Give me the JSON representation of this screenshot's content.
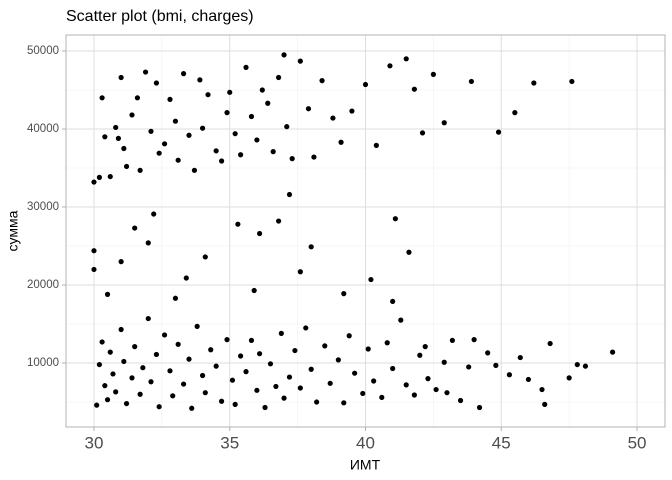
{
  "chart_data": {
    "type": "scatter",
    "title": "Scatter plot (bmi, charges)",
    "x_label": "ИМТ",
    "y_label": "сумма",
    "color": "#000000",
    "x": [
      30.0,
      30.2,
      30.3,
      30.4,
      30.6,
      30.8,
      30.9,
      31.0,
      31.1,
      31.2,
      31.4,
      31.6,
      31.7,
      31.9,
      32.1,
      32.3,
      32.4,
      32.6,
      32.8,
      33.0,
      33.1,
      33.3,
      33.5,
      33.7,
      33.9,
      34.0,
      34.2,
      34.5,
      34.7,
      34.9,
      35.0,
      35.2,
      35.4,
      35.6,
      35.8,
      36.0,
      36.2,
      36.4,
      36.6,
      36.8,
      37.0,
      37.1,
      37.3,
      37.6,
      37.9,
      38.1,
      38.4,
      38.8,
      39.1,
      39.5,
      40.0,
      40.4,
      40.9,
      41.5,
      41.8,
      42.1,
      42.5,
      42.9,
      43.9,
      44.9,
      45.5,
      46.2,
      47.6,
      30.0,
      30.0,
      30.5,
      31.0,
      31.5,
      32.0,
      32.2,
      33.0,
      33.4,
      34.1,
      35.3,
      35.9,
      36.1,
      36.8,
      37.2,
      37.6,
      38.0,
      39.2,
      40.2,
      41.1,
      41.6,
      41.0,
      30.1,
      30.2,
      30.3,
      30.4,
      30.5,
      30.6,
      30.7,
      30.8,
      31.0,
      31.1,
      31.2,
      31.4,
      31.5,
      31.7,
      31.8,
      32.0,
      32.1,
      32.3,
      32.4,
      32.6,
      32.8,
      32.9,
      33.1,
      33.3,
      33.5,
      33.6,
      33.8,
      34.0,
      34.1,
      34.3,
      34.5,
      34.7,
      34.9,
      35.1,
      35.2,
      35.4,
      35.6,
      35.8,
      36.0,
      36.1,
      36.3,
      36.5,
      36.7,
      36.9,
      37.0,
      37.2,
      37.4,
      37.6,
      37.8,
      38.0,
      38.2,
      38.5,
      38.7,
      39.0,
      39.2,
      39.4,
      39.6,
      39.9,
      40.1,
      40.3,
      40.6,
      40.8,
      41.0,
      41.3,
      41.5,
      41.8,
      42.0,
      42.3,
      42.6,
      42.9,
      43.2,
      43.5,
      43.8,
      44.2,
      44.5,
      44.8,
      45.3,
      45.7,
      46.0,
      46.6,
      46.8,
      47.5,
      47.8,
      48.1,
      49.1,
      46.5,
      44.0,
      43.0,
      42.2
    ],
    "values": [
      33200,
      33800,
      44000,
      39000,
      33900,
      40200,
      38800,
      46600,
      37500,
      35200,
      41800,
      44000,
      34700,
      47300,
      39700,
      45900,
      36900,
      38100,
      43800,
      41000,
      36000,
      47100,
      39200,
      34700,
      46300,
      40100,
      44400,
      37200,
      35900,
      42100,
      44700,
      39400,
      36700,
      47900,
      41600,
      38600,
      45000,
      43300,
      37100,
      46600,
      49500,
      40300,
      36200,
      48700,
      42600,
      36400,
      46200,
      41400,
      38300,
      42300,
      45700,
      37900,
      48100,
      49000,
      45100,
      39500,
      47000,
      40800,
      46100,
      39600,
      42100,
      45900,
      46100,
      24400,
      22000,
      18800,
      23000,
      27300,
      25400,
      29100,
      18300,
      20900,
      23600,
      27800,
      19300,
      26600,
      28200,
      31600,
      21700,
      24900,
      18900,
      20700,
      28500,
      24200,
      17900,
      4600,
      9800,
      12700,
      7100,
      5300,
      11400,
      8600,
      6300,
      14300,
      10200,
      4800,
      8100,
      12100,
      6000,
      9400,
      15700,
      7600,
      11100,
      4400,
      13600,
      9000,
      5800,
      12400,
      7300,
      10500,
      4200,
      14700,
      8400,
      6200,
      11700,
      9600,
      5100,
      13000,
      7800,
      4700,
      10900,
      8900,
      12900,
      6500,
      11200,
      4300,
      9900,
      7000,
      13800,
      5500,
      8200,
      11600,
      6800,
      14500,
      9200,
      5000,
      12200,
      7400,
      10400,
      4900,
      13500,
      8700,
      6100,
      11800,
      7700,
      5600,
      12600,
      9300,
      15500,
      7200,
      5900,
      11000,
      8000,
      6600,
      10100,
      12900,
      5200,
      9500,
      4300,
      11300,
      9700,
      8500,
      10700,
      7900,
      4700,
      12500,
      8100,
      9800,
      9600,
      11400,
      6600,
      13000,
      6200,
      12100
    ],
    "xlim": [
      28.97,
      51.03
    ],
    "ylim": [
      1800,
      52050
    ],
    "xticks": [
      30,
      35,
      40,
      45,
      50
    ],
    "yticks": [
      10000,
      20000,
      30000,
      40000,
      50000
    ],
    "minor_xticks": [
      32.5,
      37.5,
      42.5,
      47.5
    ],
    "minor_yticks": [
      5000,
      15000,
      25000,
      35000,
      45000
    ],
    "grid": true
  }
}
